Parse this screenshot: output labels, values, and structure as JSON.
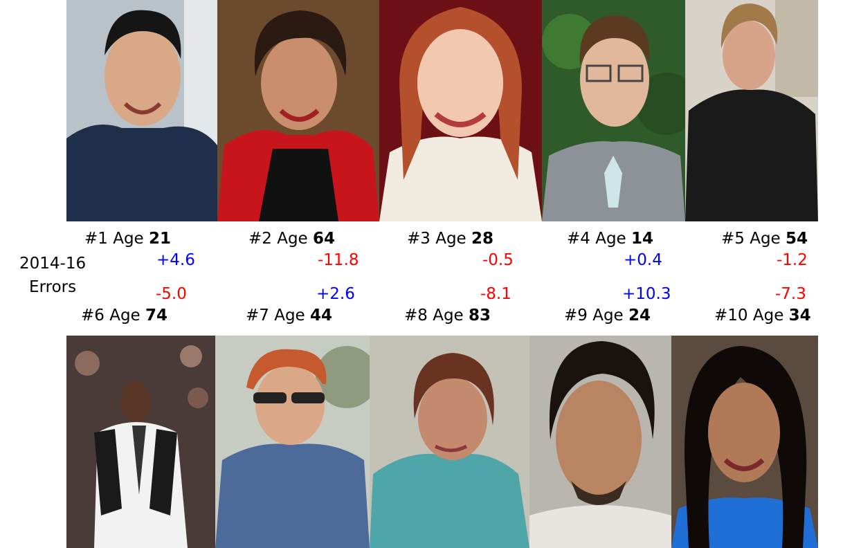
{
  "side_label": {
    "line1": "2014-16",
    "line2": "Errors"
  },
  "top_people": [
    {
      "num": "#1",
      "age_text": "Age",
      "age": "21",
      "error": "+4.6",
      "sign": "pos"
    },
    {
      "num": "#2",
      "age_text": "Age",
      "age": "64",
      "error": "-11.8",
      "sign": "neg"
    },
    {
      "num": "#3",
      "age_text": "Age",
      "age": "28",
      "error": "-0.5",
      "sign": "neg"
    },
    {
      "num": "#4",
      "age_text": "Age",
      "age": "14",
      "error": "+0.4",
      "sign": "pos"
    },
    {
      "num": "#5",
      "age_text": "Age",
      "age": "54",
      "error": "-1.2",
      "sign": "neg"
    }
  ],
  "bottom_people": [
    {
      "num": "#6",
      "age_text": "Age",
      "age": "74",
      "error": "-5.0",
      "sign": "neg"
    },
    {
      "num": "#7",
      "age_text": "Age",
      "age": "44",
      "error": "+2.6",
      "sign": "pos"
    },
    {
      "num": "#8",
      "age_text": "Age",
      "age": "83",
      "error": "-8.1",
      "sign": "neg"
    },
    {
      "num": "#9",
      "age_text": "Age",
      "age": "24",
      "error": "+10.3",
      "sign": "pos"
    },
    {
      "num": "#10",
      "age_text": "Age",
      "age": "34",
      "error": "-7.3",
      "sign": "neg"
    }
  ],
  "colors": {
    "positive_error": "#0000ff",
    "negative_error": "#ff0000"
  }
}
